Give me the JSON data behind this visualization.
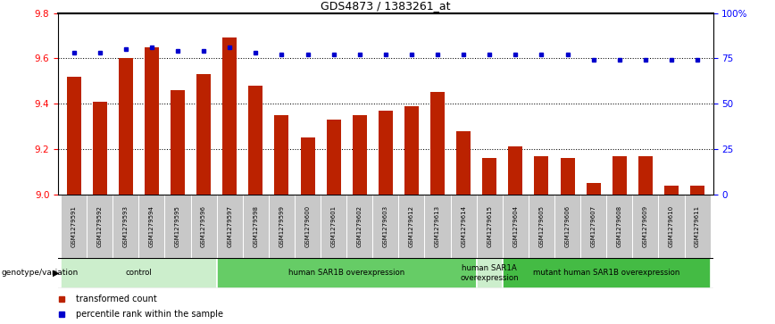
{
  "title": "GDS4873 / 1383261_at",
  "samples": [
    "GSM1279591",
    "GSM1279592",
    "GSM1279593",
    "GSM1279594",
    "GSM1279595",
    "GSM1279596",
    "GSM1279597",
    "GSM1279598",
    "GSM1279599",
    "GSM1279600",
    "GSM1279601",
    "GSM1279602",
    "GSM1279603",
    "GSM1279612",
    "GSM1279613",
    "GSM1279614",
    "GSM1279615",
    "GSM1279604",
    "GSM1279605",
    "GSM1279606",
    "GSM1279607",
    "GSM1279608",
    "GSM1279609",
    "GSM1279610",
    "GSM1279611"
  ],
  "bar_values": [
    9.52,
    9.41,
    9.6,
    9.65,
    9.46,
    9.53,
    9.69,
    9.48,
    9.35,
    9.25,
    9.33,
    9.35,
    9.37,
    9.39,
    9.45,
    9.28,
    9.16,
    9.21,
    9.17,
    9.16,
    9.05,
    9.17,
    9.17,
    9.04,
    9.04
  ],
  "percentile_values": [
    78,
    78,
    80,
    81,
    79,
    79,
    81,
    78,
    77,
    77,
    77,
    77,
    77,
    77,
    77,
    77,
    77,
    77,
    77,
    77,
    74,
    74,
    74,
    74,
    74
  ],
  "ylim_left": [
    9.0,
    9.8
  ],
  "ylim_right": [
    0,
    100
  ],
  "yticks_left": [
    9.0,
    9.2,
    9.4,
    9.6,
    9.8
  ],
  "yticks_right": [
    0,
    25,
    50,
    75,
    100
  ],
  "ytick_labels_right": [
    "0",
    "25",
    "50",
    "75",
    "100%"
  ],
  "dotted_hlines": [
    9.2,
    9.4,
    9.6
  ],
  "bar_color": "#BB2200",
  "dot_color": "#0000CC",
  "groups": [
    {
      "label": "control",
      "start": 0,
      "end": 6,
      "color": "#CCEECC"
    },
    {
      "label": "human SAR1B overexpression",
      "start": 6,
      "end": 16,
      "color": "#66CC66"
    },
    {
      "label": "human SAR1A\noverexpression",
      "start": 16,
      "end": 17,
      "color": "#CCEECC"
    },
    {
      "label": "mutant human SAR1B overexpression",
      "start": 17,
      "end": 25,
      "color": "#44BB44"
    }
  ],
  "legend_label_bar": "transformed count",
  "legend_label_dot": "percentile rank within the sample",
  "genotype_label": "genotype/variation"
}
